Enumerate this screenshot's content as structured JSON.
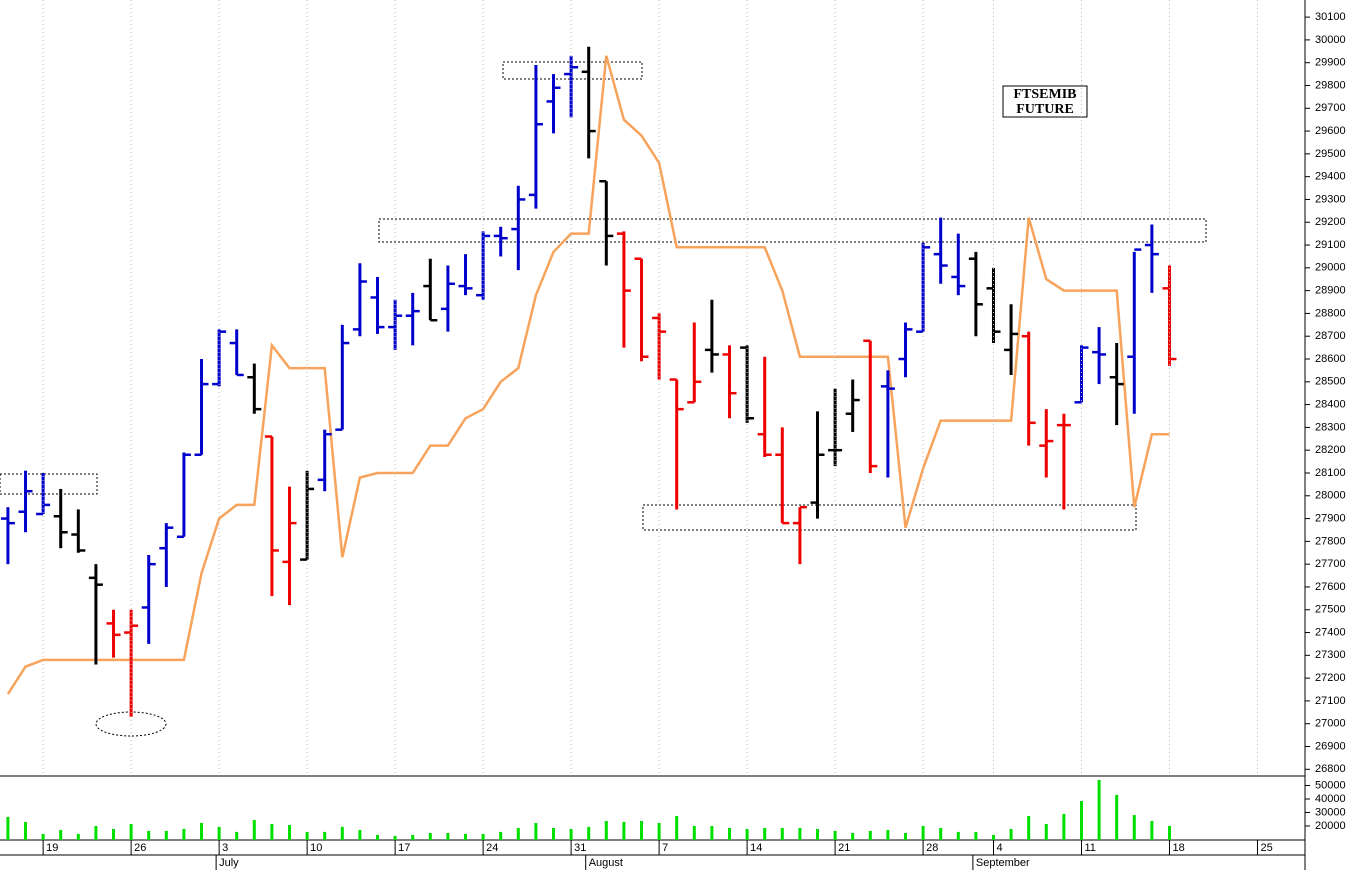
{
  "chart_data": [
    {
      "type": "ohlc",
      "title_lines": [
        "FTSEMIB",
        "FUTURE"
      ],
      "xlim": [
        -0.45,
        73.7
      ],
      "ylim": [
        26775,
        30175
      ],
      "yticks": [
        26800,
        26900,
        27000,
        27100,
        27200,
        27300,
        27400,
        27500,
        27600,
        27700,
        27800,
        27900,
        28000,
        28100,
        28200,
        28300,
        28400,
        28500,
        28600,
        28700,
        28800,
        28900,
        29000,
        29100,
        29200,
        29300,
        29400,
        29500,
        29600,
        29700,
        29800,
        29900,
        30000,
        30100
      ],
      "open": [
        27900,
        27930,
        27920,
        27910,
        27830,
        27640,
        27440,
        27400,
        27510,
        27770,
        27820,
        28180,
        28490,
        28670,
        28520,
        28260,
        27710,
        27720,
        28070,
        28290,
        28730,
        28870,
        28740,
        28790,
        28920,
        28820,
        28920,
        28880,
        29140,
        29170,
        29320,
        29730,
        29850,
        29860,
        29380,
        29150,
        29040,
        28780,
        28510,
        28410,
        28640,
        28620,
        28650,
        28270,
        28180,
        27880,
        27970,
        28200,
        28360,
        28680,
        28480,
        28600,
        28720,
        29060,
        28960,
        29040,
        28910,
        28640,
        28700,
        28220,
        28310,
        28410,
        28630,
        28520,
        28610,
        29100,
        28910
      ],
      "high": [
        27950,
        28110,
        28100,
        28030,
        27940,
        27700,
        27500,
        27500,
        27740,
        27880,
        28190,
        28600,
        28730,
        28730,
        28580,
        28260,
        28040,
        28110,
        28290,
        28750,
        29020,
        28960,
        28860,
        28890,
        29040,
        29010,
        29060,
        29160,
        29180,
        29360,
        29890,
        29850,
        29930,
        29970,
        29380,
        29160,
        29040,
        28800,
        28510,
        28760,
        28860,
        28660,
        28660,
        28610,
        28300,
        27950,
        28370,
        28470,
        28510,
        28680,
        28550,
        28760,
        29110,
        29220,
        29150,
        29070,
        29000,
        28840,
        28720,
        28380,
        28360,
        28660,
        28740,
        28670,
        29070,
        29190,
        29010
      ],
      "low": [
        27700,
        27840,
        27920,
        27770,
        27750,
        27260,
        27290,
        27030,
        27350,
        27600,
        27820,
        28180,
        28480,
        28530,
        28360,
        27560,
        27520,
        27720,
        28020,
        28290,
        28700,
        28710,
        28640,
        28660,
        28770,
        28720,
        28880,
        28860,
        29050,
        28990,
        29260,
        29590,
        29660,
        29480,
        29010,
        28650,
        28590,
        28510,
        27940,
        28410,
        28540,
        28340,
        28320,
        28170,
        27880,
        27700,
        27900,
        28130,
        28280,
        28100,
        28080,
        28520,
        28720,
        28930,
        28880,
        28700,
        28670,
        28530,
        28220,
        28080,
        27940,
        28410,
        28490,
        28310,
        28360,
        28890,
        28570
      ],
      "close": [
        27880,
        28020,
        27960,
        27840,
        27760,
        27610,
        27390,
        27430,
        27700,
        27860,
        28180,
        28490,
        28720,
        28530,
        28380,
        27760,
        27880,
        28030,
        28270,
        28670,
        28940,
        28740,
        28790,
        28810,
        28770,
        28930,
        28910,
        29140,
        29130,
        29300,
        29630,
        29790,
        29880,
        29600,
        29140,
        28900,
        28610,
        28720,
        28380,
        28500,
        28620,
        28450,
        28340,
        28180,
        27880,
        27950,
        28180,
        28200,
        28420,
        28130,
        28470,
        28730,
        29090,
        29010,
        28920,
        28840,
        28720,
        28710,
        28320,
        28240,
        28310,
        28650,
        28620,
        28490,
        29080,
        29060,
        28600
      ],
      "bar_colors": [
        "#0000cc",
        "#0000cc",
        "#0000cc",
        "#000000",
        "#000000",
        "#000000",
        "#ee0000",
        "#ee0000",
        "#0000cc",
        "#0000cc",
        "#0000cc",
        "#0000cc",
        "#0000cc",
        "#0000cc",
        "#000000",
        "#ee0000",
        "#ee0000",
        "#000000",
        "#0000cc",
        "#0000cc",
        "#0000cc",
        "#0000cc",
        "#0000cc",
        "#0000cc",
        "#000000",
        "#0000cc",
        "#0000cc",
        "#0000cc",
        "#0000cc",
        "#0000cc",
        "#0000cc",
        "#0000cc",
        "#0000cc",
        "#000000",
        "#000000",
        "#ee0000",
        "#ee0000",
        "#ee0000",
        "#ee0000",
        "#ee0000",
        "#000000",
        "#ee0000",
        "#000000",
        "#ee0000",
        "#ee0000",
        "#ee0000",
        "#000000",
        "#000000",
        "#000000",
        "#ee0000",
        "#0000cc",
        "#0000cc",
        "#0000cc",
        "#0000cc",
        "#0000cc",
        "#000000",
        "#000000",
        "#000000",
        "#ee0000",
        "#ee0000",
        "#ee0000",
        "#0000cc",
        "#0000cc",
        "#000000",
        "#0000cc",
        "#0000cc",
        "#ee0000"
      ],
      "line": {
        "color": "#f7a35c",
        "values": [
          27130,
          27250,
          27280,
          27280,
          27280,
          27280,
          27280,
          27280,
          27280,
          27280,
          27280,
          27660,
          27900,
          27960,
          27960,
          28660,
          28560,
          28560,
          28560,
          27730,
          28080,
          28100,
          28100,
          28100,
          28220,
          28220,
          28340,
          28380,
          28500,
          28560,
          28880,
          29070,
          29150,
          29150,
          29930,
          29650,
          29580,
          29460,
          29090,
          29090,
          29090,
          29090,
          29090,
          29090,
          28900,
          28610,
          28610,
          28610,
          28610,
          28610,
          28610,
          27860,
          28120,
          28330,
          28330,
          28330,
          28330,
          28330,
          29220,
          28950,
          28900,
          28900,
          28900,
          28900,
          27950,
          28270,
          28270
        ]
      }
    },
    {
      "type": "bar",
      "color": "#00e000",
      "xlim": [
        -0.45,
        73.7
      ],
      "ylim": [
        9600,
        56300
      ],
      "yticks": [
        20000,
        30000,
        40000,
        50000
      ],
      "values": [
        26700,
        23000,
        14100,
        17000,
        14100,
        20000,
        17800,
        21500,
        16300,
        16300,
        17800,
        22200,
        19300,
        15600,
        24400,
        21500,
        20700,
        15600,
        15600,
        19300,
        17000,
        13300,
        12600,
        13300,
        14800,
        14800,
        14100,
        14100,
        15600,
        18500,
        22200,
        18500,
        17800,
        19300,
        23700,
        23000,
        23700,
        22200,
        27400,
        20000,
        20000,
        18500,
        17800,
        18500,
        18500,
        18500,
        17800,
        16300,
        14800,
        16300,
        17000,
        14800,
        20000,
        18500,
        15600,
        15600,
        13300,
        17800,
        27400,
        21500,
        28900,
        38500,
        54100,
        43000,
        28100,
        23700,
        20000
      ],
      "xticks": [
        {
          "value": 2,
          "label": "19"
        },
        {
          "value": 7,
          "label": "26"
        },
        {
          "value": 12,
          "label": "3"
        },
        {
          "value": 17,
          "label": "10"
        },
        {
          "value": 22,
          "label": "17"
        },
        {
          "value": 27,
          "label": "24"
        },
        {
          "value": 32,
          "label": "31"
        },
        {
          "value": 37,
          "label": "7"
        },
        {
          "value": 42,
          "label": "14"
        },
        {
          "value": 47,
          "label": "21"
        },
        {
          "value": 52,
          "label": "28"
        },
        {
          "value": 56,
          "label": "4"
        },
        {
          "value": 61,
          "label": "11"
        },
        {
          "value": 66,
          "label": "18"
        },
        {
          "value": 71,
          "label": "25"
        }
      ],
      "month_ticks": [
        {
          "value": 12,
          "label": "July"
        },
        {
          "value": 33,
          "label": "August"
        },
        {
          "value": 55,
          "label": "September"
        }
      ]
    }
  ]
}
